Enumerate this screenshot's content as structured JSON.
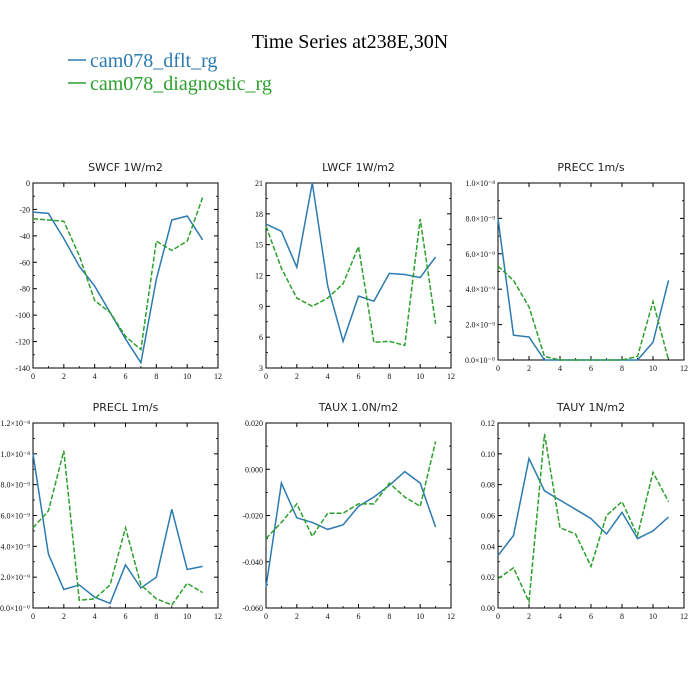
{
  "figure": {
    "title": "Time Series at238E,30N",
    "legend": [
      {
        "label": "cam078_dflt_rg",
        "color": "#2b7bb0",
        "dash": "solid"
      },
      {
        "label": "cam078_diagnostic_rg",
        "color": "#2ca02c",
        "dash": "dashed"
      }
    ]
  },
  "chart_data": [
    {
      "type": "line",
      "title": "SWCF   1W/m2",
      "xlim": [
        0,
        12
      ],
      "ylim": [
        -140,
        0
      ],
      "xticks": [
        0,
        2,
        4,
        6,
        8,
        10,
        12
      ],
      "yticks": [
        -140,
        -120,
        -100,
        -80,
        -60,
        -40,
        -20,
        0
      ],
      "ytick_labels": [
        "-140",
        "-120",
        "-100",
        "-80",
        "-60",
        "-40",
        "-20",
        "0"
      ],
      "x": [
        0,
        1,
        2,
        3,
        4,
        5,
        6,
        7,
        8,
        9,
        10,
        11
      ],
      "series": [
        {
          "name": "cam078_dflt_rg",
          "values": [
            -22,
            -23,
            -42,
            -63,
            -78,
            -98,
            -118,
            -136,
            -73,
            -28,
            -25,
            -43
          ]
        },
        {
          "name": "cam078_diagnostic_rg",
          "values": [
            -27,
            -28,
            -29,
            -55,
            -89,
            -98,
            -116,
            -126,
            -44,
            -51,
            -44,
            -11
          ]
        }
      ]
    },
    {
      "type": "line",
      "title": "LWCF   1W/m2",
      "xlim": [
        0,
        12
      ],
      "ylim": [
        3,
        21
      ],
      "xticks": [
        0,
        2,
        4,
        6,
        8,
        10,
        12
      ],
      "yticks": [
        3,
        6,
        9,
        12,
        15,
        18,
        21
      ],
      "ytick_labels": [
        "3",
        "6",
        "9",
        "12",
        "15",
        "18",
        "21"
      ],
      "x": [
        0,
        1,
        2,
        3,
        4,
        5,
        6,
        7,
        8,
        9,
        10,
        11
      ],
      "series": [
        {
          "name": "cam078_dflt_rg",
          "values": [
            17.0,
            16.3,
            12.8,
            21.0,
            11.0,
            5.6,
            10.0,
            9.5,
            12.2,
            12.1,
            11.8,
            13.8
          ]
        },
        {
          "name": "cam078_diagnostic_rg",
          "values": [
            16.8,
            12.7,
            9.8,
            9.0,
            9.8,
            11.2,
            14.8,
            5.5,
            5.6,
            5.2,
            17.5,
            7.3
          ]
        }
      ]
    },
    {
      "type": "line",
      "title": "PRECC   1m/s",
      "xlim": [
        0,
        12
      ],
      "ylim": [
        0,
        1e-08
      ],
      "xticks": [
        0,
        2,
        4,
        6,
        8,
        10,
        12
      ],
      "yticks": [
        0,
        2e-09,
        4e-09,
        6e-09,
        8e-09,
        1e-08
      ],
      "ytick_labels": [
        "0.0×10⁻⁰",
        "2.0×10⁻⁹",
        "4.0×10⁻⁹",
        "6.0×10⁻⁹",
        "8.0×10⁻⁹",
        "1.0×10⁻⁸"
      ],
      "x": [
        0,
        1,
        2,
        3,
        4,
        5,
        6,
        7,
        8,
        9,
        10,
        11
      ],
      "series": [
        {
          "name": "cam078_dflt_rg",
          "values": [
            8e-09,
            1.4e-09,
            1.3e-09,
            0,
            0,
            0,
            0,
            0,
            0,
            0,
            1e-09,
            4.5e-09
          ]
        },
        {
          "name": "cam078_diagnostic_rg",
          "values": [
            5.3e-09,
            4.5e-09,
            3e-09,
            2e-10,
            0,
            0,
            0,
            0,
            0,
            2e-10,
            3.3e-09,
            0
          ]
        }
      ]
    },
    {
      "type": "line",
      "title": "PRECL   1m/s",
      "xlim": [
        0,
        12
      ],
      "ylim": [
        0,
        1.2e-08
      ],
      "xticks": [
        0,
        2,
        4,
        6,
        8,
        10,
        12
      ],
      "yticks": [
        0,
        2e-09,
        4e-09,
        6e-09,
        8e-09,
        1e-08,
        1.2e-08
      ],
      "ytick_labels": [
        "0.0×10⁻⁰",
        "2.0×10⁻⁹",
        "4.0×10⁻⁹",
        "6.0×10⁻⁹",
        "8.0×10⁻⁹",
        "1.0×10⁻⁸",
        "1.2×10⁻⁸"
      ],
      "x": [
        0,
        1,
        2,
        3,
        4,
        5,
        6,
        7,
        8,
        9,
        10,
        11
      ],
      "series": [
        {
          "name": "cam078_dflt_rg",
          "values": [
            1e-08,
            3.5e-09,
            1.2e-09,
            1.5e-09,
            7e-10,
            3e-10,
            2.8e-09,
            1.3e-09,
            2e-09,
            6.4e-09,
            2.5e-09,
            2.7e-09
          ]
        },
        {
          "name": "cam078_diagnostic_rg",
          "values": [
            5.2e-09,
            6.3e-09,
            1.02e-08,
            5e-10,
            6e-10,
            1.5e-09,
            5.2e-09,
            1.5e-09,
            6e-10,
            2e-10,
            1.6e-09,
            1e-09
          ]
        }
      ]
    },
    {
      "type": "line",
      "title": "TAUX   1.0N/m2",
      "xlim": [
        0,
        12
      ],
      "ylim": [
        -0.06,
        0.02
      ],
      "xticks": [
        0,
        2,
        4,
        6,
        8,
        10,
        12
      ],
      "yticks": [
        -0.06,
        -0.04,
        -0.02,
        0,
        0.02
      ],
      "ytick_labels": [
        "-0.060",
        "-0.040",
        "-0.020",
        "0.000",
        "0.020"
      ],
      "x": [
        0,
        1,
        2,
        3,
        4,
        5,
        6,
        7,
        8,
        9,
        10,
        11
      ],
      "series": [
        {
          "name": "cam078_dflt_rg",
          "values": [
            -0.051,
            -0.006,
            -0.021,
            -0.023,
            -0.026,
            -0.024,
            -0.016,
            -0.012,
            -0.007,
            -0.001,
            -0.006,
            -0.025
          ]
        },
        {
          "name": "cam078_diagnostic_rg",
          "values": [
            -0.03,
            -0.023,
            -0.015,
            -0.029,
            -0.019,
            -0.019,
            -0.015,
            -0.015,
            -0.006,
            -0.012,
            -0.016,
            0.012
          ]
        }
      ]
    },
    {
      "type": "line",
      "title": "TAUY   1N/m2",
      "xlim": [
        0,
        12
      ],
      "ylim": [
        0,
        0.12
      ],
      "xticks": [
        0,
        2,
        4,
        6,
        8,
        10,
        12
      ],
      "yticks": [
        0,
        0.02,
        0.04,
        0.06,
        0.08,
        0.1,
        0.12
      ],
      "ytick_labels": [
        "0.00",
        "0.02",
        "0.04",
        "0.06",
        "0.08",
        "0.10",
        "0.12"
      ],
      "x": [
        0,
        1,
        2,
        3,
        4,
        5,
        6,
        7,
        8,
        9,
        10,
        11
      ],
      "series": [
        {
          "name": "cam078_dflt_rg",
          "values": [
            0.034,
            0.047,
            0.097,
            0.076,
            0.07,
            0.064,
            0.058,
            0.048,
            0.062,
            0.045,
            0.05,
            0.059
          ]
        },
        {
          "name": "cam078_diagnostic_rg",
          "values": [
            0.019,
            0.026,
            0.004,
            0.113,
            0.052,
            0.048,
            0.027,
            0.06,
            0.069,
            0.047,
            0.088,
            0.069
          ]
        }
      ]
    }
  ]
}
